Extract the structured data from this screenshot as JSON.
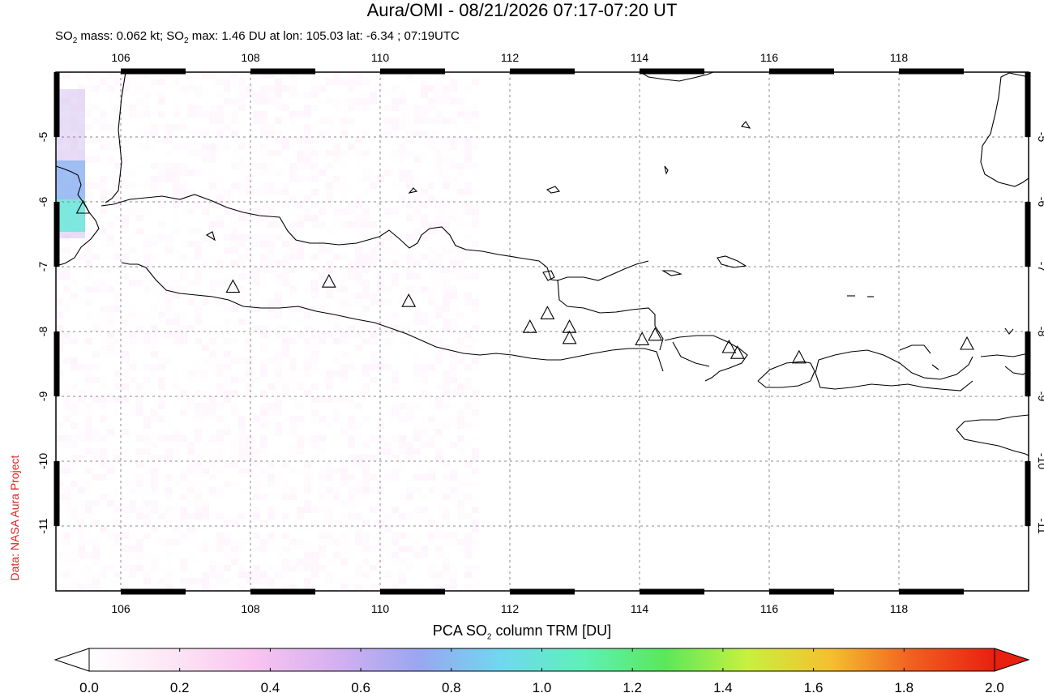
{
  "header": {
    "title": "Aura/OMI - 08/21/2026 07:17-07:20 UT",
    "subtitle_mass_prefix": "SO",
    "subtitle_mass_sub": "2",
    "subtitle_mass_text": " mass: 0.062 kt; SO",
    "subtitle_max_sub": "2",
    "subtitle_max_text": " max: 1.46 DU at lon: 105.03 lat: -6.34 ; 07:19UTC"
  },
  "credit": "Data: NASA Aura Project",
  "map": {
    "lon_range": [
      105,
      120
    ],
    "lat_range": [
      -12,
      -4
    ],
    "lon_ticks": [
      "106",
      "108",
      "110",
      "112",
      "114",
      "116",
      "118"
    ],
    "lat_ticks": [
      "-5",
      "-6",
      "-7",
      "-8",
      "-9",
      "-10",
      "-11"
    ],
    "gridlines": true,
    "volcano_symbol": "triangle-icon",
    "volcanoes": [
      {
        "lon": 105.42,
        "lat": -6.1
      },
      {
        "lon": 107.73,
        "lat": -7.32
      },
      {
        "lon": 109.21,
        "lat": -7.24
      },
      {
        "lon": 110.44,
        "lat": -7.54
      },
      {
        "lon": 112.31,
        "lat": -7.94
      },
      {
        "lon": 112.58,
        "lat": -7.73
      },
      {
        "lon": 112.92,
        "lat": -7.94
      },
      {
        "lon": 112.92,
        "lat": -8.11
      },
      {
        "lon": 114.04,
        "lat": -8.13
      },
      {
        "lon": 114.24,
        "lat": -8.06
      },
      {
        "lon": 115.38,
        "lat": -8.25
      },
      {
        "lon": 115.51,
        "lat": -8.34
      },
      {
        "lon": 116.46,
        "lat": -8.41
      },
      {
        "lon": 119.05,
        "lat": -8.2
      }
    ]
  },
  "colorbar": {
    "title_prefix": "PCA SO",
    "title_sub": "2",
    "title_suffix": " column TRM [DU]",
    "ticks": [
      "0.0",
      "0.2",
      "0.4",
      "0.6",
      "0.8",
      "1.0",
      "1.2",
      "1.4",
      "1.6",
      "1.8",
      "2.0"
    ],
    "range": [
      0,
      2
    ],
    "colors": [
      "#ffffff",
      "#fde6f4",
      "#f9c4f0",
      "#d4b0f0",
      "#9aa6f0",
      "#6fd8f0",
      "#5ff0b8",
      "#5ae85a",
      "#c8f040",
      "#f5c030",
      "#f06020",
      "#e82010"
    ]
  }
}
